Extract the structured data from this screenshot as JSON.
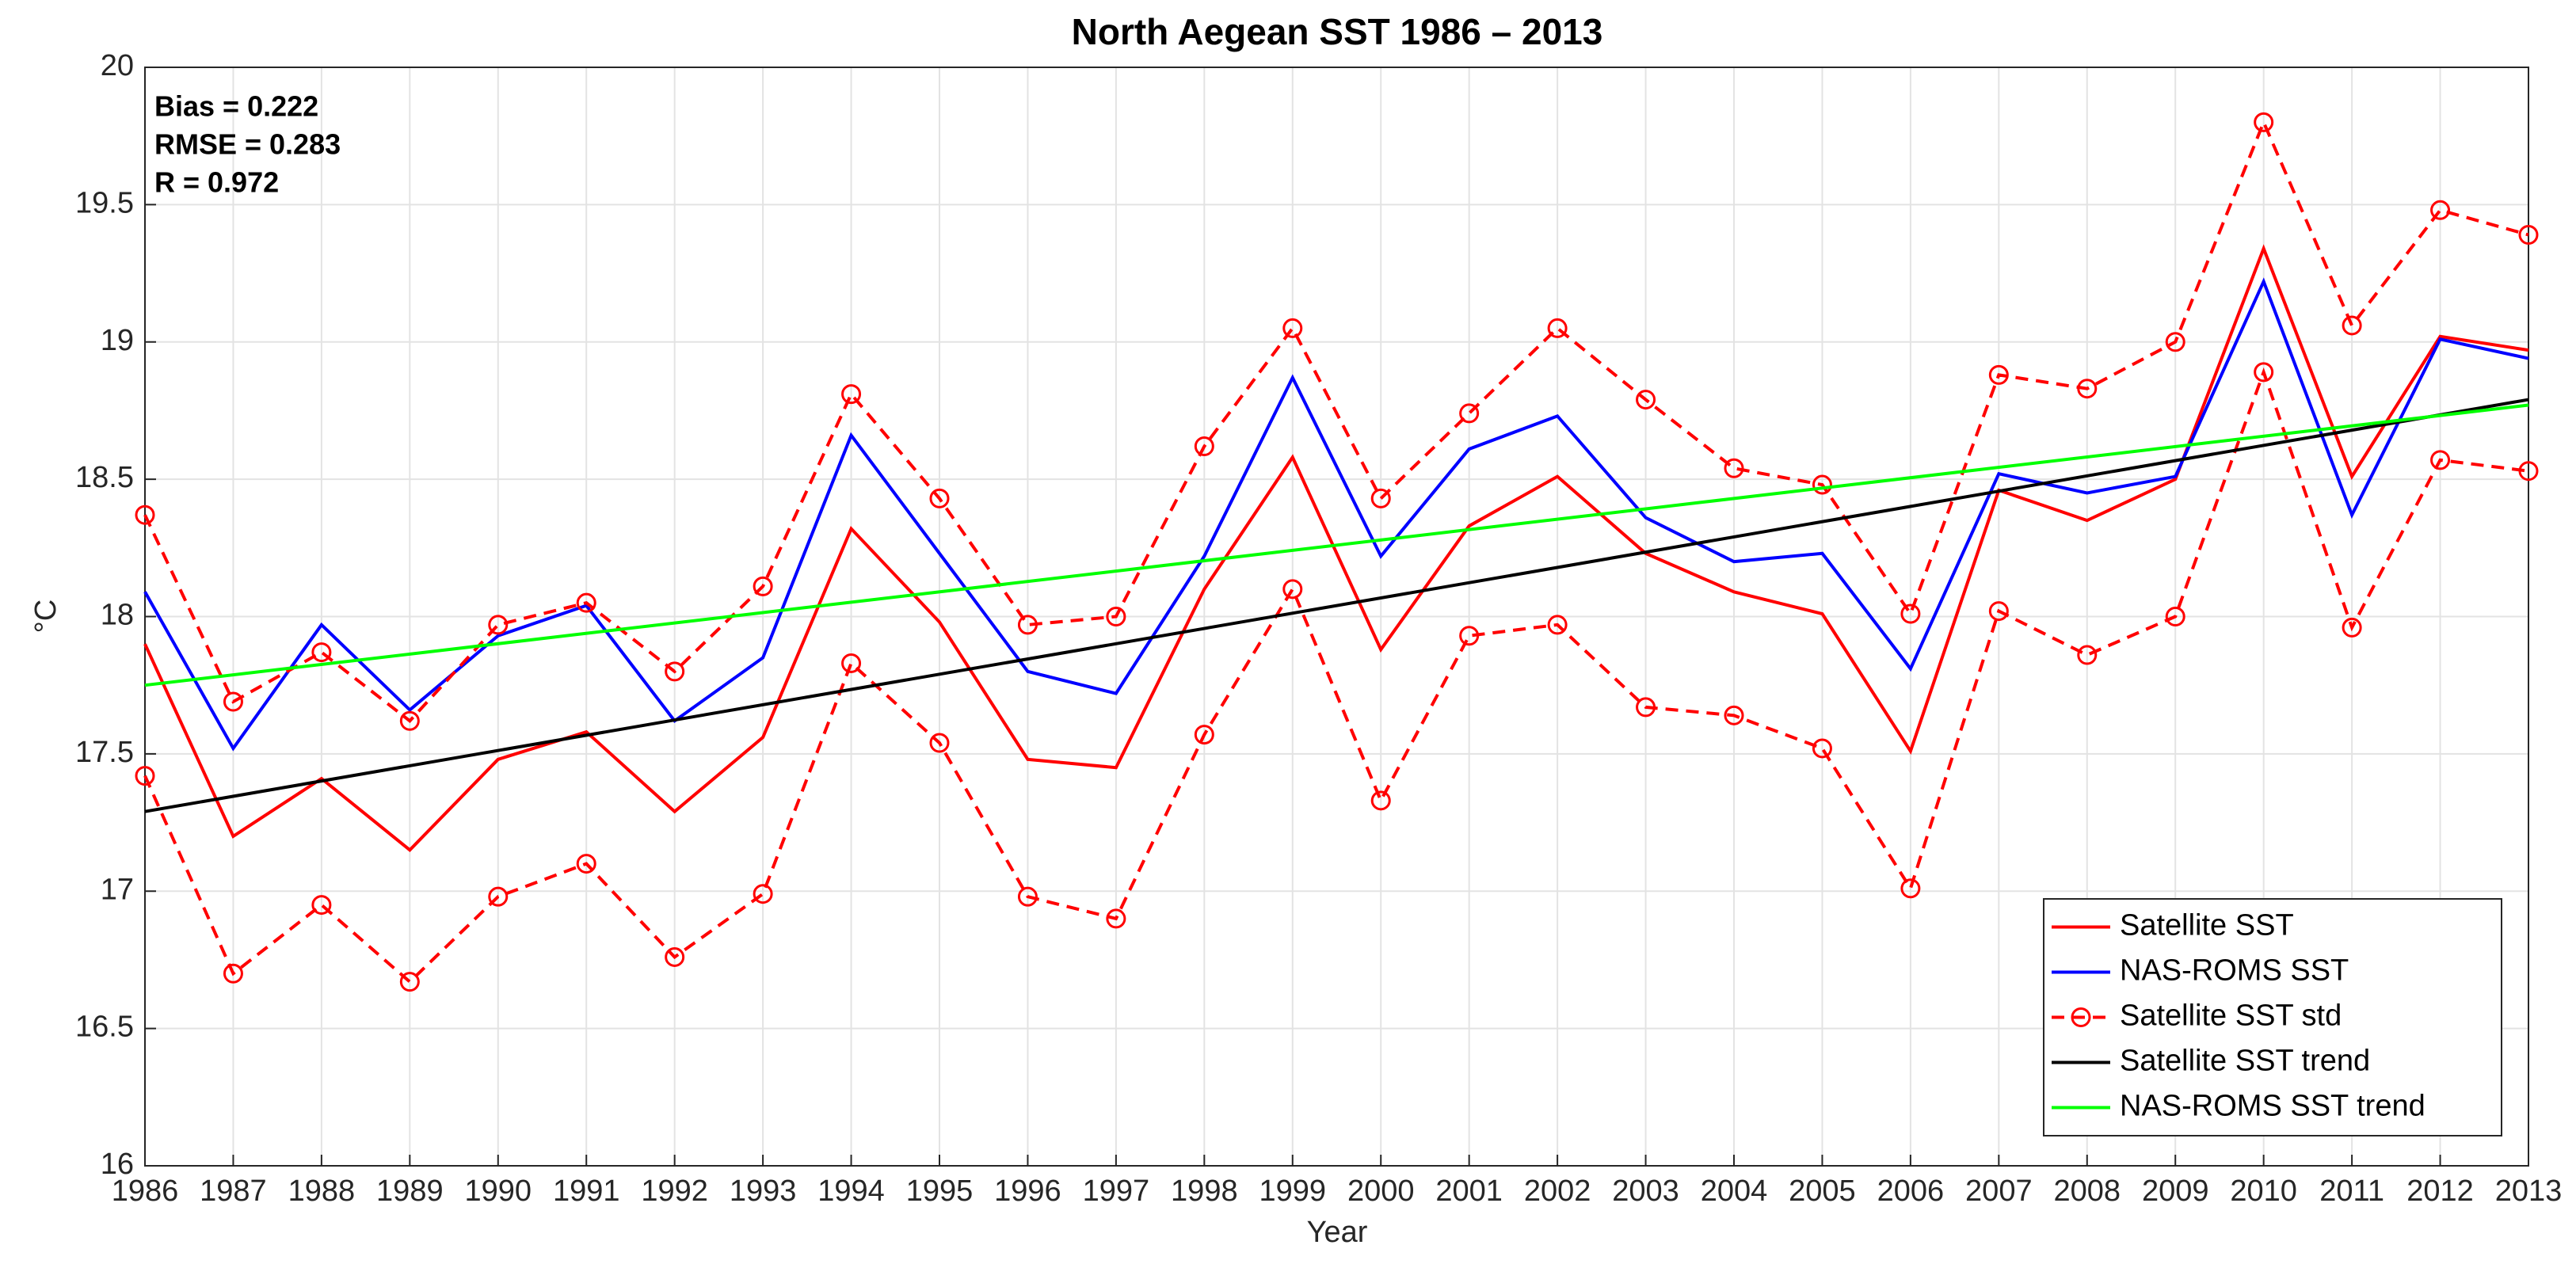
{
  "chart_data": {
    "type": "line",
    "title": "North Aegean SST 1986 – 2013",
    "xlabel": "Year",
    "ylabel": "°C",
    "annotations": [
      "Bias = 0.222",
      "RMSE = 0.283",
      "R =  0.972"
    ],
    "x": [
      1986,
      1987,
      1988,
      1989,
      1990,
      1991,
      1992,
      1993,
      1994,
      1995,
      1996,
      1997,
      1998,
      1999,
      2000,
      2001,
      2002,
      2003,
      2004,
      2005,
      2006,
      2007,
      2008,
      2009,
      2010,
      2011,
      2012,
      2013
    ],
    "xlim": [
      1986,
      2013
    ],
    "xticks": [
      1986,
      1987,
      1988,
      1989,
      1990,
      1991,
      1992,
      1993,
      1994,
      1995,
      1996,
      1997,
      1998,
      1999,
      2000,
      2001,
      2002,
      2003,
      2004,
      2005,
      2006,
      2007,
      2008,
      2009,
      2010,
      2011,
      2012,
      2013
    ],
    "ylim": [
      16,
      20
    ],
    "yticks": [
      16,
      16.5,
      17,
      17.5,
      18,
      18.5,
      19,
      19.5,
      20
    ],
    "grid": true,
    "legend_position": "lower right",
    "series": [
      {
        "name": "Satellite SST",
        "color": "#ff0000",
        "values": [
          17.9,
          17.2,
          17.41,
          17.15,
          17.48,
          17.58,
          17.29,
          17.56,
          18.32,
          17.98,
          17.48,
          17.45,
          18.1,
          18.58,
          17.88,
          18.33,
          18.51,
          18.23,
          18.09,
          18.01,
          17.51,
          18.46,
          18.35,
          18.5,
          19.34,
          18.51,
          19.02,
          18.97
        ]
      },
      {
        "name": "NAS-ROMS SST",
        "color": "#0000ff",
        "values": [
          18.09,
          17.52,
          17.97,
          17.66,
          17.93,
          18.04,
          17.62,
          17.85,
          18.66,
          18.23,
          17.8,
          17.72,
          18.22,
          18.87,
          18.22,
          18.61,
          18.73,
          18.36,
          18.2,
          18.23,
          17.81,
          18.52,
          18.45,
          18.51,
          19.22,
          18.37,
          19.01,
          18.94
        ]
      },
      {
        "name": "Satellite SST std",
        "color": "#ff0000",
        "dashed": true,
        "marker": "circle",
        "upper": [
          18.37,
          17.69,
          17.87,
          17.62,
          17.97,
          18.05,
          17.8,
          18.11,
          18.81,
          18.43,
          17.97,
          18.0,
          18.62,
          19.05,
          18.43,
          18.74,
          19.05,
          18.79,
          18.54,
          18.48,
          18.01,
          18.88,
          18.83,
          19.0,
          19.8,
          19.06,
          19.48,
          19.39
        ],
        "lower": [
          17.42,
          16.7,
          16.95,
          16.67,
          16.98,
          17.1,
          16.76,
          16.99,
          17.83,
          17.54,
          16.98,
          16.9,
          17.57,
          18.1,
          17.33,
          17.93,
          17.97,
          17.67,
          17.64,
          17.52,
          17.01,
          18.02,
          17.86,
          18.0,
          18.89,
          17.96,
          18.57,
          18.53
        ]
      },
      {
        "name": "Satellite SST trend",
        "color": "#000000",
        "x": [
          1986,
          2013
        ],
        "values": [
          17.29,
          18.79
        ]
      },
      {
        "name": "NAS-ROMS SST trend",
        "color": "#00ff00",
        "x": [
          1986,
          2013
        ],
        "values": [
          17.75,
          18.77
        ]
      }
    ]
  }
}
